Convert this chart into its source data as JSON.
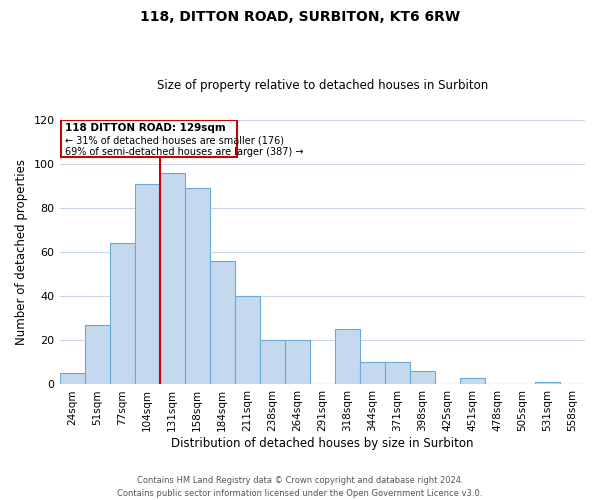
{
  "title": "118, DITTON ROAD, SURBITON, KT6 6RW",
  "subtitle": "Size of property relative to detached houses in Surbiton",
  "xlabel": "Distribution of detached houses by size in Surbiton",
  "ylabel": "Number of detached properties",
  "categories": [
    "24sqm",
    "51sqm",
    "77sqm",
    "104sqm",
    "131sqm",
    "158sqm",
    "184sqm",
    "211sqm",
    "238sqm",
    "264sqm",
    "291sqm",
    "318sqm",
    "344sqm",
    "371sqm",
    "398sqm",
    "425sqm",
    "451sqm",
    "478sqm",
    "505sqm",
    "531sqm",
    "558sqm"
  ],
  "values": [
    5,
    27,
    64,
    91,
    96,
    89,
    56,
    40,
    20,
    20,
    0,
    25,
    10,
    10,
    6,
    0,
    3,
    0,
    0,
    1,
    0
  ],
  "bar_color": "#c5d9ee",
  "bar_edge_color": "#6aaad4",
  "vline_x_index": 4,
  "vline_color": "#cc0000",
  "ylim": [
    0,
    120
  ],
  "yticks": [
    0,
    20,
    40,
    60,
    80,
    100,
    120
  ],
  "annotation_title": "118 DITTON ROAD: 129sqm",
  "annotation_line1": "← 31% of detached houses are smaller (176)",
  "annotation_line2": "69% of semi-detached houses are larger (387) →",
  "annotation_box_color": "#cc0000",
  "footer_line1": "Contains HM Land Registry data © Crown copyright and database right 2024.",
  "footer_line2": "Contains public sector information licensed under the Open Government Licence v3.0.",
  "background_color": "#ffffff",
  "grid_color": "#c8d8e8"
}
